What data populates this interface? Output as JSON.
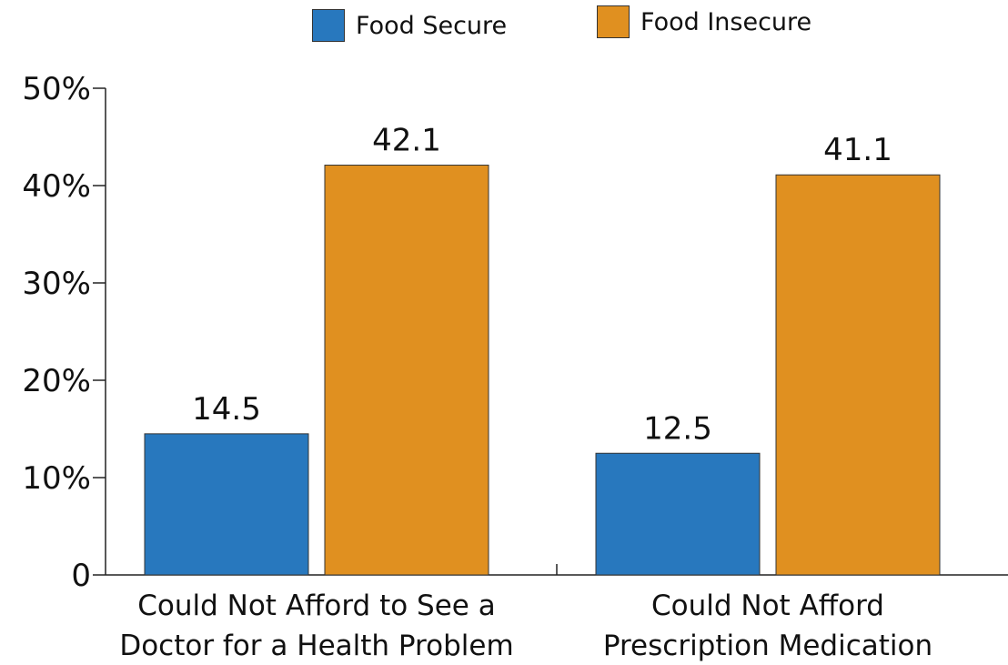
{
  "chart_data": {
    "type": "bar",
    "categories": [
      [
        "Could Not Afford to See a",
        "Doctor for a Health Problem"
      ],
      [
        "Could Not Afford",
        "Prescription Medication"
      ]
    ],
    "series": [
      {
        "name": "Food Secure",
        "color": "#2878be",
        "values": [
          14.5,
          12.5
        ],
        "labels": [
          "14.5",
          "12.5"
        ]
      },
      {
        "name": "Food Insecure",
        "color": "#e09020",
        "values": [
          42.1,
          41.1
        ],
        "labels": [
          "42.1",
          "41.1"
        ]
      }
    ],
    "ylim": [
      0,
      50
    ],
    "yticks": [
      0,
      10,
      20,
      30,
      40,
      50
    ],
    "ytick_labels": [
      "0",
      "10%",
      "20%",
      "30%",
      "40%",
      "50%"
    ],
    "legend_position": "top-center",
    "grid": false
  }
}
